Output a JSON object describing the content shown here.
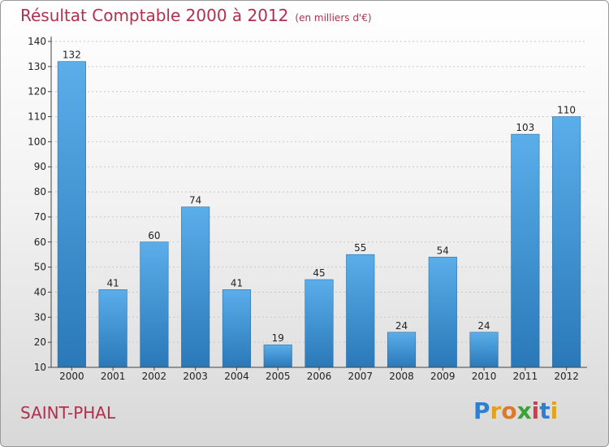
{
  "header": {
    "title": "Résultat Comptable 2000 à 2012",
    "subtitle": "(en milliers d'€)"
  },
  "footer": {
    "commune": "SAINT-PHAL",
    "logo_text": "Proxiti"
  },
  "colors": {
    "title": "#b0304e",
    "bar_top": "#5aaeea",
    "bar_bottom": "#2a78b8",
    "grid": "#c8c8c8"
  },
  "chart_data": {
    "type": "bar",
    "title": "Résultat Comptable 2000 à 2012",
    "subtitle": "(en milliers d'€)",
    "xlabel": "",
    "ylabel": "",
    "categories": [
      "2000",
      "2001",
      "2002",
      "2003",
      "2004",
      "2005",
      "2006",
      "2007",
      "2008",
      "2009",
      "2010",
      "2011",
      "2012"
    ],
    "values": [
      132,
      41,
      60,
      74,
      41,
      19,
      45,
      55,
      24,
      54,
      24,
      103,
      110
    ],
    "ylim": [
      10,
      140
    ],
    "yticks": [
      10,
      20,
      30,
      40,
      50,
      60,
      70,
      80,
      90,
      100,
      110,
      120,
      130,
      140
    ],
    "grid": true,
    "legend": "none"
  }
}
